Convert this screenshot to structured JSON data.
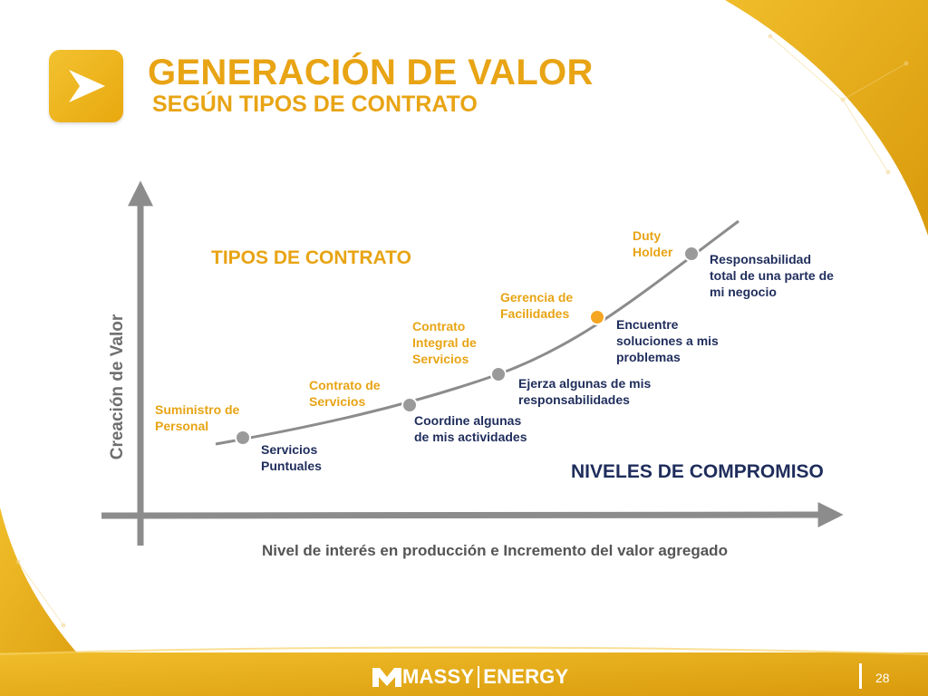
{
  "title": "GENERACIÓN DE VALOR",
  "subtitle": "SEGÚN TIPOS DE CONTRATO",
  "headings": {
    "contract_types": "TIPOS DE CONTRATO",
    "commitment_levels": "NIVELES DE COMPROMISO"
  },
  "axes": {
    "y_label": "Creación de Valor",
    "x_label": "Nivel de interés en producción e Incremento del valor agregado"
  },
  "stages": [
    {
      "contract": "Suministro de Personal",
      "commitment": "Servicios Puntuales",
      "highlight": false
    },
    {
      "contract": "Contrato de Servicios",
      "commitment": "Coordine algunas de mis actividades",
      "highlight": false
    },
    {
      "contract": "Contrato Integral de Servicios",
      "commitment": "Ejerza algunas de mis responsabilidades",
      "highlight": false
    },
    {
      "contract": "Gerencia de Facilidades",
      "commitment": "Encuentre soluciones a mis problemas",
      "highlight": true
    },
    {
      "contract": "Duty Holder",
      "commitment": "Responsabilidad total de una parte de mi negocio",
      "highlight": false
    }
  ],
  "footer": {
    "logo_left": "MASSY",
    "logo_right": "ENERGY",
    "page_number": "28"
  },
  "colors": {
    "accent": "#e8a414",
    "navy": "#1f2d5c",
    "marker": "#9a9a9a",
    "marker_highlight": "#f5a623",
    "axis": "#8c8c8c"
  }
}
